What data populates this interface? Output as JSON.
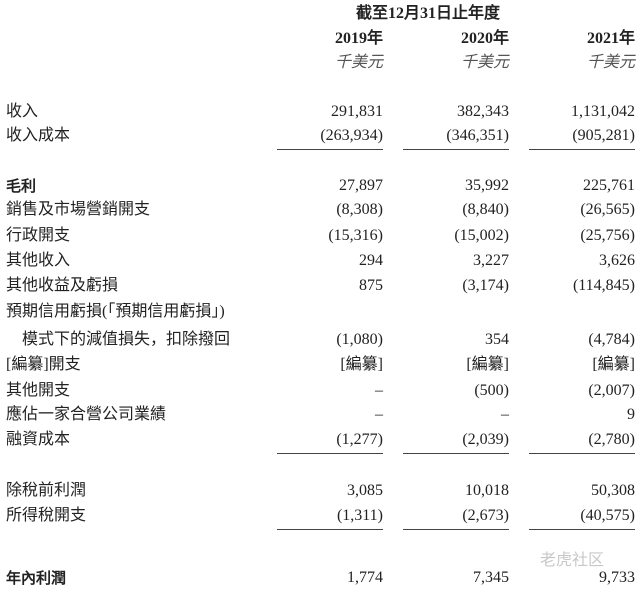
{
  "header": {
    "period": "截至12月31日止年度",
    "years": [
      "2019年",
      "2020年",
      "2021年"
    ],
    "units": [
      "千美元",
      "千美元",
      "千美元"
    ]
  },
  "rows": [
    {
      "label": "收入",
      "values": [
        "291,831",
        "382,343",
        "1,131,042"
      ]
    },
    {
      "label": "收入成本",
      "values": [
        "(263,934)",
        "(346,351)",
        "(905,281)"
      ],
      "underline": true
    },
    {
      "label": "毛利",
      "values": [
        "27,897",
        "35,992",
        "225,761"
      ],
      "bold": true
    },
    {
      "label": "銷售及市場營銷開支",
      "values": [
        "(8,308)",
        "(8,840)",
        "(26,565)"
      ]
    },
    {
      "label": "行政開支",
      "values": [
        "(15,316)",
        "(15,002)",
        "(25,756)"
      ]
    },
    {
      "label": "其他收入",
      "values": [
        "294",
        "3,227",
        "3,626"
      ]
    },
    {
      "label": "其他收益及虧損",
      "values": [
        "875",
        "(3,174)",
        "(114,845)"
      ]
    },
    {
      "label": "預期信用虧損(「預期信用虧損」)",
      "values": [
        "",
        "",
        ""
      ]
    },
    {
      "label": "　模式下的減值損失，扣除撥回",
      "values": [
        "(1,080)",
        "354",
        "(4,784)"
      ]
    },
    {
      "label": "[編纂]開支",
      "values": [
        "[編纂]",
        "[編纂]",
        "[編纂]"
      ]
    },
    {
      "label": "其他開支",
      "values": [
        "–",
        "(500)",
        "(2,007)"
      ]
    },
    {
      "label": "應佔一家合營公司業績",
      "values": [
        "–",
        "–",
        "9"
      ]
    },
    {
      "label": "融資成本",
      "values": [
        "(1,277)",
        "(2,039)",
        "(2,780)"
      ],
      "underline": true
    },
    {
      "label": "除稅前利潤",
      "values": [
        "3,085",
        "10,018",
        "50,308"
      ]
    },
    {
      "label": "所得稅開支",
      "values": [
        "(1,311)",
        "(2,673)",
        "(40,575)"
      ],
      "underline": true
    },
    {
      "label": "年內利潤",
      "values": [
        "1,774",
        "7,345",
        "9,733"
      ],
      "bold": true
    }
  ],
  "watermark": "老虎社区"
}
